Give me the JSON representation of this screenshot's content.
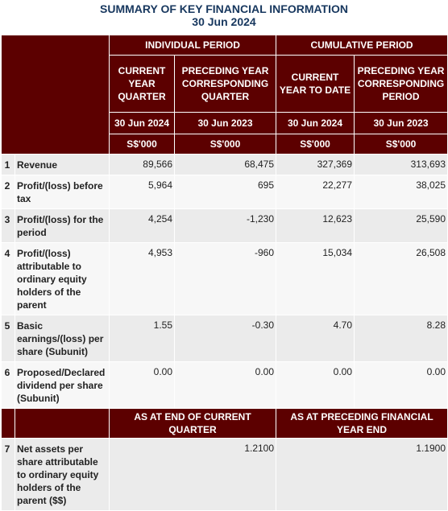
{
  "title_line1": "SUMMARY OF KEY FINANCIAL INFORMATION",
  "title_line2": "30 Jun 2024",
  "headers": {
    "individual_period": "INDIVIDUAL PERIOD",
    "cumulative_period": "CUMULATIVE PERIOD",
    "current_year_quarter": "CURRENT YEAR QUARTER",
    "preceding_year_quarter": "PRECEDING YEAR CORRESPONDING QUARTER",
    "current_year_to_date": "CURRENT YEAR TO DATE",
    "preceding_year_period": "PRECEDING YEAR CORRESPONDING PERIOD",
    "date_current": "30 Jun 2024",
    "date_preceding": "30 Jun 2023",
    "date_cum_current": "30 Jun 2024",
    "date_cum_preceding": "30 Jun 2023",
    "unit": "S$'000"
  },
  "rows": [
    {
      "num": "1",
      "label": "Revenue",
      "v1": "89,566",
      "v2": "68,475",
      "v3": "327,369",
      "v4": "313,693"
    },
    {
      "num": "2",
      "label": "Profit/(loss) before tax",
      "v1": "5,964",
      "v2": "695",
      "v3": "22,277",
      "v4": "38,025"
    },
    {
      "num": "3",
      "label": "Profit/(loss) for the period",
      "v1": "4,254",
      "v2": "-1,230",
      "v3": "12,623",
      "v4": "25,590"
    },
    {
      "num": "4",
      "label": "Profit/(loss) attributable to ordinary equity holders of the parent",
      "v1": "4,953",
      "v2": "-960",
      "v3": "15,034",
      "v4": "26,508"
    },
    {
      "num": "5",
      "label": "Basic earnings/(loss) per share (Subunit)",
      "v1": "1.55",
      "v2": "-0.30",
      "v3": "4.70",
      "v4": "8.28"
    },
    {
      "num": "6",
      "label": "Proposed/Declared dividend per share (Subunit)",
      "v1": "0.00",
      "v2": "0.00",
      "v3": "0.00",
      "v4": "0.00"
    }
  ],
  "nav_section": {
    "header_current": "AS AT END OF CURRENT QUARTER",
    "header_preceding": "AS AT PRECEDING FINANCIAL YEAR END",
    "row": {
      "num": "7",
      "label": "Net assets per share attributable to ordinary equity holders of the parent ($$)",
      "v_current": "1.2100",
      "v_preceding": "1.1900"
    }
  }
}
